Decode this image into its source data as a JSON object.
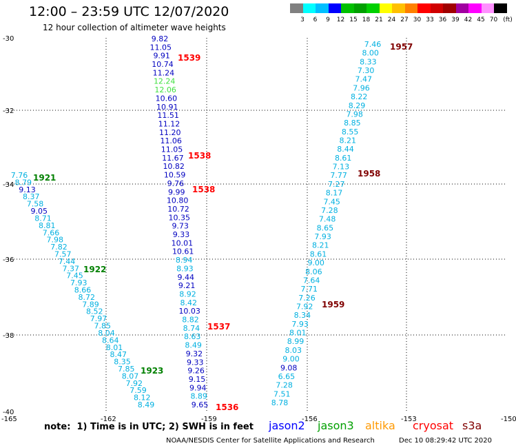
{
  "header": {
    "title": "12:00 – 23:59 UTC 12/07/2020",
    "subtitle": "12 hour collection of altimeter wave heights"
  },
  "colorbar": {
    "unit": "(ft)",
    "swatches": [
      "#808080",
      "#00ffff",
      "#00bfff",
      "#0000ff",
      "#00c000",
      "#00a000",
      "#00d000",
      "#ffff00",
      "#ffc000",
      "#ff8000",
      "#ff0000",
      "#d00000",
      "#a00000",
      "#a000a0",
      "#ff00ff",
      "#ff90ff",
      "#000000"
    ],
    "labels": [
      "3",
      "6",
      "9",
      "12",
      "15",
      "18",
      "21",
      "24",
      "27",
      "30",
      "33",
      "36",
      "39",
      "42",
      "45",
      "70"
    ]
  },
  "axes": {
    "lon_ticks": [
      "-165",
      "-162",
      "-159",
      "-156",
      "-153",
      "-150"
    ],
    "lat_ticks": [
      "-30",
      "-32",
      "-34",
      "-36",
      "-38",
      "-40"
    ]
  },
  "satellites": [
    {
      "name": "jason2",
      "color": "#0000ff"
    },
    {
      "name": "jason3",
      "color": "#00a000"
    },
    {
      "name": "altika",
      "color": "#ff9900"
    },
    {
      "name": "cryosat",
      "color": "#ff0000"
    },
    {
      "name": "s3a",
      "color": "#800000"
    }
  ],
  "tracks": [
    {
      "name": "track-a",
      "values": [
        {
          "v": "7.76",
          "c": "#00b0e0"
        },
        {
          "v": "8.79",
          "c": "#00b0e0"
        },
        {
          "v": "9.13",
          "c": "#0000c0"
        },
        {
          "v": "8.37",
          "c": "#00b0e0"
        },
        {
          "v": "7.58",
          "c": "#00b0e0"
        },
        {
          "v": "9.05",
          "c": "#0000c0"
        },
        {
          "v": "8.71",
          "c": "#00b0e0"
        },
        {
          "v": "8.81",
          "c": "#00b0e0"
        },
        {
          "v": "7.66",
          "c": "#00b0e0"
        },
        {
          "v": "7.98",
          "c": "#00b0e0"
        },
        {
          "v": "7.82",
          "c": "#00b0e0"
        },
        {
          "v": "7.57",
          "c": "#00b0e0"
        },
        {
          "v": "7.44",
          "c": "#00b0e0"
        },
        {
          "v": "7.37",
          "c": "#00b0e0"
        },
        {
          "v": "7.45",
          "c": "#00b0e0"
        },
        {
          "v": "7.93",
          "c": "#00b0e0"
        },
        {
          "v": "8.66",
          "c": "#00b0e0"
        },
        {
          "v": "8.72",
          "c": "#00b0e0"
        },
        {
          "v": "7.89",
          "c": "#00b0e0"
        },
        {
          "v": "8.52",
          "c": "#00b0e0"
        },
        {
          "v": "7.97",
          "c": "#00b0e0"
        },
        {
          "v": "7.85",
          "c": "#00b0e0"
        },
        {
          "v": "8.04",
          "c": "#00b0e0"
        },
        {
          "v": "8.64",
          "c": "#00b0e0"
        },
        {
          "v": "8.01",
          "c": "#00b0e0"
        },
        {
          "v": "8.47",
          "c": "#00b0e0"
        },
        {
          "v": "8.35",
          "c": "#00b0e0"
        },
        {
          "v": "7.85",
          "c": "#00b0e0"
        },
        {
          "v": "8.07",
          "c": "#00b0e0"
        },
        {
          "v": "7.92",
          "c": "#00b0e0"
        },
        {
          "v": "7.59",
          "c": "#00b0e0"
        },
        {
          "v": "8.12",
          "c": "#00b0e0"
        },
        {
          "v": "8.49",
          "c": "#00b0e0"
        }
      ]
    },
    {
      "name": "track-b",
      "values": [
        {
          "v": "9.82",
          "c": "#0000c0"
        },
        {
          "v": "11.05",
          "c": "#0000c0"
        },
        {
          "v": "9.91",
          "c": "#0000c0"
        },
        {
          "v": "10.74",
          "c": "#0000c0"
        },
        {
          "v": "11.24",
          "c": "#0000c0"
        },
        {
          "v": "12.24",
          "c": "#40e040"
        },
        {
          "v": "12.06",
          "c": "#40e040"
        },
        {
          "v": "10.60",
          "c": "#0000c0"
        },
        {
          "v": "10.91",
          "c": "#0000c0"
        },
        {
          "v": "11.51",
          "c": "#0000c0"
        },
        {
          "v": "11.12",
          "c": "#0000c0"
        },
        {
          "v": "11.20",
          "c": "#0000c0"
        },
        {
          "v": "11.06",
          "c": "#0000c0"
        },
        {
          "v": "11.05",
          "c": "#0000c0"
        },
        {
          "v": "11.67",
          "c": "#0000c0"
        },
        {
          "v": "10.82",
          "c": "#0000c0"
        },
        {
          "v": "10.59",
          "c": "#0000c0"
        },
        {
          "v": "9.76",
          "c": "#0000c0"
        },
        {
          "v": "9.99",
          "c": "#0000c0"
        },
        {
          "v": "10.80",
          "c": "#0000c0"
        },
        {
          "v": "10.72",
          "c": "#0000c0"
        },
        {
          "v": "10.35",
          "c": "#0000c0"
        },
        {
          "v": "9.73",
          "c": "#0000c0"
        },
        {
          "v": "9.33",
          "c": "#0000c0"
        },
        {
          "v": "10.01",
          "c": "#0000c0"
        },
        {
          "v": "10.61",
          "c": "#0000c0"
        },
        {
          "v": "8.94",
          "c": "#00b0e0"
        },
        {
          "v": "8.93",
          "c": "#00b0e0"
        },
        {
          "v": "9.44",
          "c": "#0000c0"
        },
        {
          "v": "9.21",
          "c": "#0000c0"
        },
        {
          "v": "8.92",
          "c": "#00b0e0"
        },
        {
          "v": "8.42",
          "c": "#00b0e0"
        },
        {
          "v": "10.03",
          "c": "#0000c0"
        },
        {
          "v": "8.82",
          "c": "#00b0e0"
        },
        {
          "v": "8.74",
          "c": "#00b0e0"
        },
        {
          "v": "8.63",
          "c": "#00b0e0"
        },
        {
          "v": "8.49",
          "c": "#00b0e0"
        },
        {
          "v": "9.32",
          "c": "#0000c0"
        },
        {
          "v": "9.33",
          "c": "#0000c0"
        },
        {
          "v": "9.26",
          "c": "#0000c0"
        },
        {
          "v": "9.15",
          "c": "#0000c0"
        },
        {
          "v": "9.94",
          "c": "#0000c0"
        },
        {
          "v": "8.89",
          "c": "#00b0e0"
        },
        {
          "v": "9.65",
          "c": "#0000c0"
        }
      ]
    },
    {
      "name": "track-c",
      "values": [
        {
          "v": "7.46",
          "c": "#00b0e0"
        },
        {
          "v": "8.00",
          "c": "#00b0e0"
        },
        {
          "v": "8.33",
          "c": "#00b0e0"
        },
        {
          "v": "7.30",
          "c": "#00b0e0"
        },
        {
          "v": "7.47",
          "c": "#00b0e0"
        },
        {
          "v": "7.96",
          "c": "#00b0e0"
        },
        {
          "v": "8.22",
          "c": "#00b0e0"
        },
        {
          "v": "8.29",
          "c": "#00b0e0"
        },
        {
          "v": "7.98",
          "c": "#00b0e0"
        },
        {
          "v": "8.85",
          "c": "#00b0e0"
        },
        {
          "v": "8.55",
          "c": "#00b0e0"
        },
        {
          "v": "8.21",
          "c": "#00b0e0"
        },
        {
          "v": "8.44",
          "c": "#00b0e0"
        },
        {
          "v": "8.61",
          "c": "#00b0e0"
        },
        {
          "v": "7.13",
          "c": "#00b0e0"
        },
        {
          "v": "7.77",
          "c": "#00b0e0"
        },
        {
          "v": "7.27",
          "c": "#00b0e0"
        },
        {
          "v": "8.17",
          "c": "#00b0e0"
        },
        {
          "v": "7.45",
          "c": "#00b0e0"
        },
        {
          "v": "7.28",
          "c": "#00b0e0"
        },
        {
          "v": "7.48",
          "c": "#00b0e0"
        },
        {
          "v": "8.65",
          "c": "#00b0e0"
        },
        {
          "v": "7.93",
          "c": "#00b0e0"
        },
        {
          "v": "8.21",
          "c": "#00b0e0"
        },
        {
          "v": "8.61",
          "c": "#00b0e0"
        },
        {
          "v": "9.00",
          "c": "#00b0e0"
        },
        {
          "v": "8.06",
          "c": "#00b0e0"
        },
        {
          "v": "7.64",
          "c": "#00b0e0"
        },
        {
          "v": "7.71",
          "c": "#00b0e0"
        },
        {
          "v": "7.26",
          "c": "#00b0e0"
        },
        {
          "v": "7.92",
          "c": "#00b0e0"
        },
        {
          "v": "8.34",
          "c": "#00b0e0"
        },
        {
          "v": "7.93",
          "c": "#00b0e0"
        },
        {
          "v": "8.01",
          "c": "#00b0e0"
        },
        {
          "v": "8.99",
          "c": "#00b0e0"
        },
        {
          "v": "8.03",
          "c": "#00b0e0"
        },
        {
          "v": "9.00",
          "c": "#00b0e0"
        },
        {
          "v": "9.08",
          "c": "#0000c0"
        },
        {
          "v": "6.65",
          "c": "#00b0e0"
        },
        {
          "v": "7.28",
          "c": "#00b0e0"
        },
        {
          "v": "7.51",
          "c": "#00b0e0"
        },
        {
          "v": "8.78",
          "c": "#00b0e0"
        }
      ]
    }
  ],
  "time_labels": [
    {
      "t": "1539",
      "c": "#ff0000"
    },
    {
      "t": "1538",
      "c": "#ff0000"
    },
    {
      "t": "1538",
      "c": "#ff0000"
    },
    {
      "t": "1537",
      "c": "#ff0000"
    },
    {
      "t": "1536",
      "c": "#ff0000"
    },
    {
      "t": "1921",
      "c": "#008000"
    },
    {
      "t": "1922",
      "c": "#008000"
    },
    {
      "t": "1923",
      "c": "#008000"
    },
    {
      "t": "1957",
      "c": "#800000"
    },
    {
      "t": "1958",
      "c": "#800000"
    },
    {
      "t": "1959",
      "c": "#800000"
    }
  ],
  "footer": {
    "note": "note:  1) Time is in UTC; 2) SWH is in feet",
    "credit": "NOAA/NESDIS Center for Satellite Applications and Research",
    "timestamp": "Dec 10 08:29:42 UTC 2020"
  }
}
